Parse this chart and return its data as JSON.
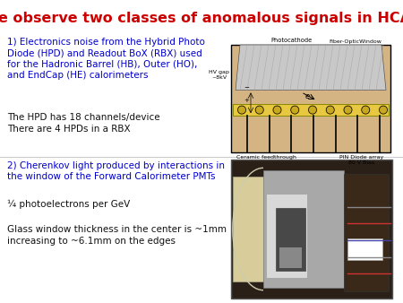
{
  "title": "We observe two classes of anomalous signals in HCAL",
  "title_color": "#cc0000",
  "title_fontsize": 11.5,
  "background_color": "#ffffff",
  "section1_header": "1) Electronics noise from the Hybrid Photo\nDiode (HPD) and Readout BoX (RBX) used\nfor the Hadronic Barrel (HB), Outer (HO),\nand EndCap (HE) calorimeters",
  "section1_header_color": "#0000cc",
  "section1_body": "The HPD has 18 channels/device\nThere are 4 HPDs in a RBX",
  "section1_body_color": "#111111",
  "section2_header": "2) Cherenkov light produced by interactions in\nthe window of the Forward Calorimeter PMTs",
  "section2_header_color": "#0000cc",
  "section2_body1": "¼ photoelectrons per GeV",
  "section2_body2": "Glass window thickness in the center is ~1mm\nincreasing to ~6.1mm on the edges",
  "section2_body_color": "#111111",
  "fontsize_body": 7.5,
  "fontsize_header": 7.5,
  "fontsize_title": 11.5
}
